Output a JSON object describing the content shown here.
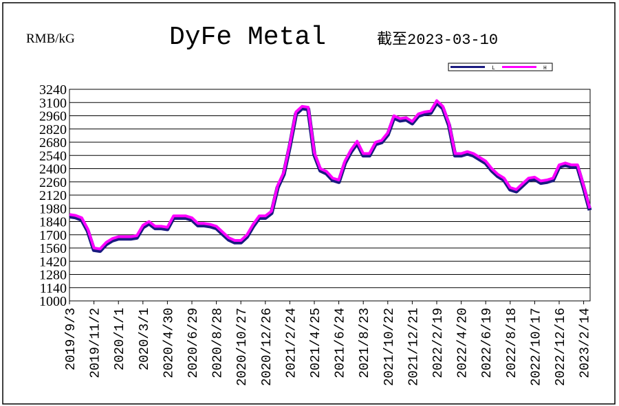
{
  "chart_data": {
    "type": "line",
    "title": "DyFe Metal",
    "subtitle": "截至2023-03-10",
    "y_label": "RMB/kG",
    "categories": [
      "2019/9/3",
      null,
      null,
      null,
      "2019/11/2",
      null,
      null,
      null,
      "2020/1/1",
      null,
      null,
      null,
      "2020/3/1",
      null,
      null,
      null,
      "2020/4/30",
      null,
      null,
      null,
      "2020/6/29",
      null,
      null,
      null,
      "2020/8/28",
      null,
      null,
      null,
      "2020/10/27",
      null,
      null,
      null,
      "2020/12/26",
      null,
      null,
      null,
      "2021/2/24",
      null,
      null,
      null,
      "2021/4/25",
      null,
      null,
      null,
      "2021/6/24",
      null,
      null,
      null,
      "2021/8/23",
      null,
      null,
      null,
      "2021/10/22",
      null,
      null,
      null,
      "2021/12/21",
      null,
      null,
      null,
      "2022/2/19",
      null,
      null,
      null,
      "2022/4/20",
      null,
      null,
      null,
      "2022/6/19",
      null,
      null,
      null,
      "2022/8/18",
      null,
      null,
      null,
      "2022/10/17",
      null,
      null,
      null,
      "2022/12/16",
      null,
      null,
      null,
      "2023/2/14",
      null
    ],
    "series": [
      {
        "name": "L",
        "color": "#1a1a80",
        "values": [
          1895,
          1885,
          1860,
          1740,
          1540,
          1530,
          1600,
          1640,
          1660,
          1660,
          1660,
          1670,
          1780,
          1820,
          1770,
          1770,
          1760,
          1880,
          1880,
          1880,
          1860,
          1800,
          1800,
          1790,
          1770,
          1710,
          1650,
          1620,
          1620,
          1680,
          1790,
          1880,
          1880,
          1930,
          2200,
          2340,
          2640,
          2980,
          3040,
          3030,
          2550,
          2380,
          2350,
          2280,
          2260,
          2460,
          2580,
          2670,
          2540,
          2540,
          2660,
          2680,
          2760,
          2940,
          2910,
          2920,
          2880,
          2960,
          2980,
          2990,
          3100,
          3040,
          2860,
          2540,
          2540,
          2560,
          2540,
          2500,
          2460,
          2380,
          2320,
          2280,
          2180,
          2160,
          2220,
          2280,
          2290,
          2250,
          2260,
          2280,
          2420,
          2440,
          2420,
          2420,
          2200,
          1960
        ]
      },
      {
        "name": "H",
        "color": "#ff00ff",
        "values": [
          1915,
          1905,
          1880,
          1760,
          1560,
          1550,
          1620,
          1660,
          1680,
          1680,
          1680,
          1690,
          1800,
          1840,
          1790,
          1790,
          1780,
          1900,
          1900,
          1900,
          1880,
          1820,
          1820,
          1810,
          1790,
          1730,
          1670,
          1640,
          1640,
          1700,
          1810,
          1900,
          1900,
          1950,
          2220,
          2360,
          2660,
          3000,
          3060,
          3050,
          2570,
          2400,
          2370,
          2300,
          2280,
          2480,
          2600,
          2690,
          2560,
          2560,
          2680,
          2700,
          2780,
          2960,
          2930,
          2940,
          2900,
          2980,
          3000,
          3010,
          3120,
          3060,
          2880,
          2560,
          2560,
          2580,
          2560,
          2520,
          2480,
          2400,
          2340,
          2300,
          2200,
          2180,
          2240,
          2300,
          2310,
          2270,
          2280,
          2300,
          2440,
          2460,
          2440,
          2440,
          2220,
          1980
        ]
      }
    ],
    "ylim": [
      1000,
      3240
    ],
    "yticks": [
      1000,
      1140,
      1280,
      1420,
      1560,
      1700,
      1840,
      1980,
      2120,
      2260,
      2400,
      2540,
      2680,
      2820,
      2960,
      3100,
      3240
    ],
    "grid": true,
    "legend": "top-right"
  }
}
